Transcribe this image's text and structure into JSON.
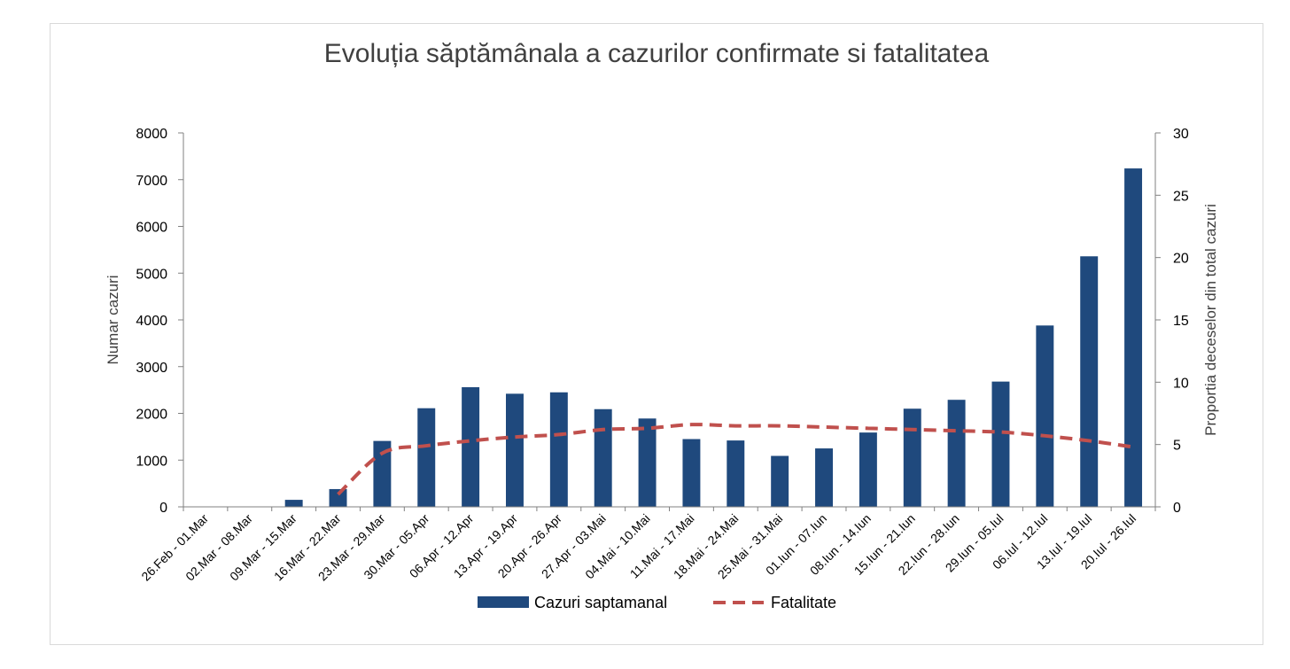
{
  "chart_data": {
    "type": "bar",
    "title": "Evoluția săptămânala a cazurilor confirmate si fatalitatea",
    "ylabel": "Numar cazuri",
    "ylabel_right": "Proportia deceselor din total cazuri",
    "ylim": [
      0,
      8000
    ],
    "ylim_right": [
      0,
      30
    ],
    "yticks": [
      0,
      1000,
      2000,
      3000,
      4000,
      5000,
      6000,
      7000,
      8000
    ],
    "yticks_right": [
      0,
      5,
      10,
      15,
      20,
      25,
      30
    ],
    "categories": [
      "26.Feb - 01.Mar",
      "02.Mar - 08.Mar",
      "09.Mar - 15.Mar",
      "16.Mar - 22.Mar",
      "23.Mar - 29.Mar",
      "30.Mar - 05.Apr",
      "06.Apr - 12.Apr",
      "13.Apr - 19.Apr",
      "20.Apr - 26.Apr",
      "27.Apr - 03.Mai",
      "04.Mai - 10.Mai",
      "11.Mai - 17.Mai",
      "18.Mai - 24.Mai",
      "25.Mai - 31.Mai",
      "01.Iun - 07.Iun",
      "08.Iun - 14.Iun",
      "15.Iun - 21.Iun",
      "22.Iun - 28.Iun",
      "29.Iun - 05.Iul",
      "06.Iul - 12.Iul",
      "13.Iul - 19.Iul",
      "20.Iul - 26.Iul"
    ],
    "series": [
      {
        "name": "Cazuri saptamanal",
        "kind": "bar",
        "axis": "left",
        "color": "#1f497d",
        "values": [
          3,
          7,
          150,
          380,
          1410,
          2110,
          2560,
          2420,
          2450,
          2090,
          1890,
          1450,
          1420,
          1090,
          1250,
          1590,
          2100,
          2290,
          2680,
          3880,
          5360,
          7240
        ]
      },
      {
        "name": "Fatalitate",
        "kind": "line",
        "axis": "right",
        "color": "#c0504d",
        "values": [
          null,
          null,
          null,
          1.0,
          4.3,
          4.9,
          5.3,
          5.6,
          5.8,
          6.2,
          6.3,
          6.6,
          6.5,
          6.5,
          6.4,
          6.3,
          6.2,
          6.1,
          6.0,
          5.7,
          5.3,
          4.8
        ]
      }
    ],
    "legend_position": "bottom",
    "grid": false
  }
}
